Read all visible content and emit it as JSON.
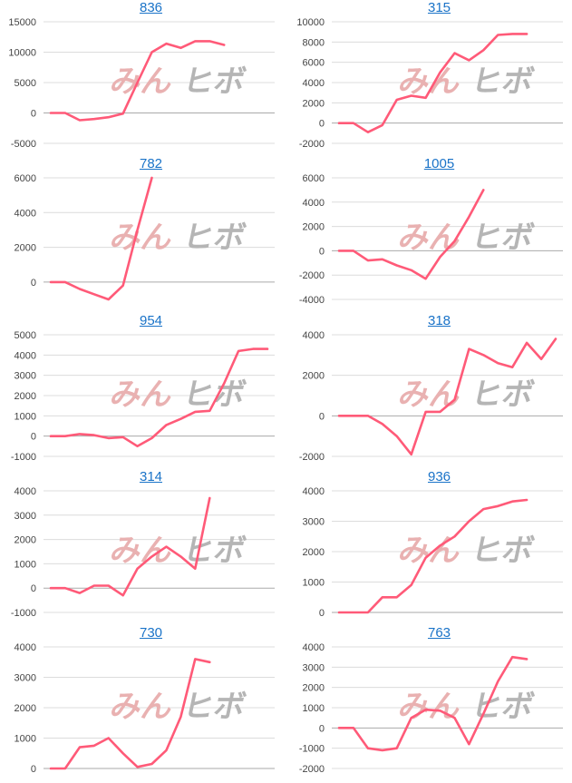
{
  "colors": {
    "line": "#ff5a78",
    "grid": "#dcdcdc",
    "zero": "#aaaaaa",
    "title": "#1a73c8",
    "watermark_red": "#e9b1b1",
    "watermark_gray": "#b5b5b5"
  },
  "watermark": {
    "text_left": "みん",
    "text_right": "ヒボ"
  },
  "chart_data": [
    {
      "type": "line",
      "title": "836",
      "ylim": [
        -5000,
        15000
      ],
      "yticks": [
        -5000,
        0,
        5000,
        10000,
        15000
      ],
      "x": [
        0,
        1,
        2,
        3,
        4,
        5,
        6,
        7,
        8,
        9,
        10,
        11,
        12
      ],
      "values": [
        0,
        0,
        -1200,
        -1000,
        -700,
        -100,
        5000,
        10000,
        11400,
        10700,
        11800,
        11800,
        11200
      ]
    },
    {
      "type": "line",
      "title": "315",
      "ylim": [
        -2000,
        10000
      ],
      "yticks": [
        -2000,
        0,
        2000,
        4000,
        6000,
        8000,
        10000
      ],
      "x": [
        0,
        1,
        2,
        3,
        4,
        5,
        6,
        7,
        8,
        9,
        10,
        11,
        12,
        13
      ],
      "values": [
        0,
        0,
        -900,
        -200,
        2300,
        2700,
        2500,
        5000,
        6900,
        6200,
        7200,
        8700,
        8800,
        8800
      ]
    },
    {
      "type": "line",
      "title": "782",
      "ylim": [
        -1000,
        6000
      ],
      "yticks": [
        0,
        2000,
        4000,
        6000
      ],
      "x": [
        0,
        1,
        2,
        3,
        4,
        5,
        6,
        7
      ],
      "values": [
        0,
        0,
        -400,
        -700,
        -1000,
        -200,
        3000,
        6000
      ]
    },
    {
      "type": "line",
      "title": "1005",
      "ylim": [
        -4000,
        6000
      ],
      "yticks": [
        -4000,
        -2000,
        0,
        2000,
        4000,
        6000
      ],
      "x": [
        0,
        1,
        2,
        3,
        4,
        5,
        6,
        7,
        8,
        9,
        10
      ],
      "values": [
        0,
        0,
        -800,
        -700,
        -1200,
        -1600,
        -2300,
        -500,
        800,
        2800,
        5000
      ]
    },
    {
      "type": "line",
      "title": "954",
      "ylim": [
        -1000,
        5000
      ],
      "yticks": [
        -1000,
        0,
        1000,
        2000,
        3000,
        4000,
        5000
      ],
      "x": [
        0,
        1,
        2,
        3,
        4,
        5,
        6,
        7,
        8,
        9,
        10,
        11,
        12,
        13,
        14,
        15
      ],
      "values": [
        0,
        0,
        100,
        50,
        -100,
        -50,
        -500,
        -100,
        550,
        850,
        1200,
        1250,
        2600,
        4200,
        4300,
        4300
      ]
    },
    {
      "type": "line",
      "title": "318",
      "ylim": [
        -2000,
        4000
      ],
      "yticks": [
        -2000,
        0,
        2000,
        4000
      ],
      "x": [
        0,
        1,
        2,
        3,
        4,
        5,
        6,
        7,
        8,
        9,
        10,
        11,
        12,
        13,
        14,
        15
      ],
      "values": [
        0,
        0,
        0,
        -400,
        -1000,
        -1900,
        200,
        200,
        800,
        3300,
        3000,
        2600,
        2400,
        3600,
        2800,
        3800
      ]
    },
    {
      "type": "line",
      "title": "314",
      "ylim": [
        -1000,
        4000
      ],
      "yticks": [
        -1000,
        0,
        1000,
        2000,
        3000,
        4000
      ],
      "x": [
        0,
        1,
        2,
        3,
        4,
        5,
        6,
        7,
        8,
        9,
        10,
        11
      ],
      "values": [
        0,
        0,
        -200,
        100,
        100,
        -300,
        800,
        1300,
        1700,
        1300,
        800,
        3700
      ]
    },
    {
      "type": "line",
      "title": "936",
      "ylim": [
        0,
        4000
      ],
      "yticks": [
        0,
        1000,
        2000,
        3000,
        4000
      ],
      "x": [
        0,
        1,
        2,
        3,
        4,
        5,
        6,
        7,
        8,
        9,
        10,
        11,
        12,
        13
      ],
      "values": [
        0,
        0,
        0,
        500,
        500,
        900,
        1800,
        2200,
        2500,
        3000,
        3400,
        3500,
        3650,
        3700
      ]
    },
    {
      "type": "line",
      "title": "730",
      "ylim": [
        0,
        4000
      ],
      "yticks": [
        0,
        1000,
        2000,
        3000,
        4000
      ],
      "x": [
        0,
        1,
        2,
        3,
        4,
        5,
        6,
        7,
        8,
        9,
        10,
        11
      ],
      "values": [
        0,
        0,
        700,
        750,
        1000,
        500,
        50,
        150,
        600,
        1700,
        3600,
        3500
      ]
    },
    {
      "type": "line",
      "title": "763",
      "ylim": [
        -2000,
        4000
      ],
      "yticks": [
        -2000,
        -1000,
        0,
        1000,
        2000,
        3000,
        4000
      ],
      "x": [
        0,
        1,
        2,
        3,
        4,
        5,
        6,
        7,
        8,
        9,
        10,
        11,
        12,
        13
      ],
      "values": [
        0,
        0,
        -1000,
        -1100,
        -1000,
        500,
        900,
        850,
        500,
        -800,
        700,
        2300,
        3500,
        3400
      ]
    }
  ]
}
